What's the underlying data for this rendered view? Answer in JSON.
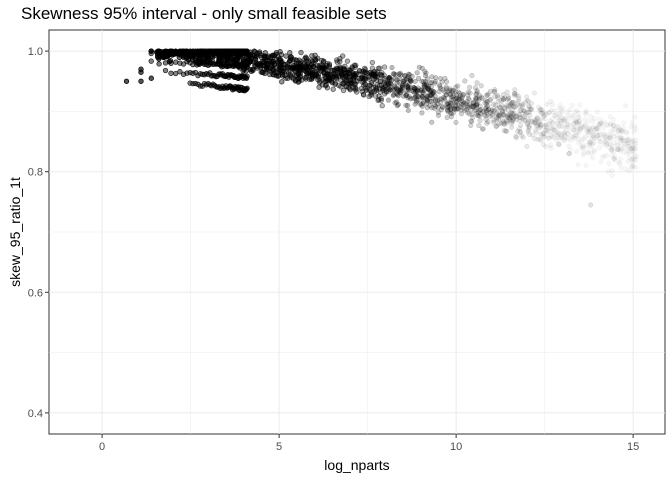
{
  "chart_data": {
    "type": "scatter",
    "title": "Skewness 95% interval - only small feasible sets",
    "xlabel": "log_nparts",
    "ylabel": "skew_95_ratio_1t",
    "xlim": [
      -1.5,
      15.9
    ],
    "ylim": [
      0.365,
      1.035
    ],
    "x_ticks": [
      0,
      5,
      10,
      15
    ],
    "y_ticks": [
      0.4,
      0.6,
      0.8,
      1.0
    ],
    "x_tick_labels": [
      "0",
      "5",
      "10",
      "15"
    ],
    "y_tick_labels": [
      "0.4",
      "0.6",
      "0.8",
      "1.0"
    ],
    "grid": true,
    "point_color": "#000000",
    "panel_border": "#333333",
    "grid_color": "#ebebeb",
    "seed_points": [
      {
        "x": 0.69,
        "y": 0.95
      },
      {
        "x": 1.1,
        "y": 0.95
      },
      {
        "x": 1.1,
        "y": 0.965
      },
      {
        "x": 1.1,
        "y": 0.97
      },
      {
        "x": 1.39,
        "y": 1.0
      },
      {
        "x": 1.39,
        "y": 0.955
      },
      {
        "x": 13.8,
        "y": 0.745
      },
      {
        "x": 13.2,
        "y": 0.83
      },
      {
        "x": 12.9,
        "y": 0.845
      }
    ]
  }
}
